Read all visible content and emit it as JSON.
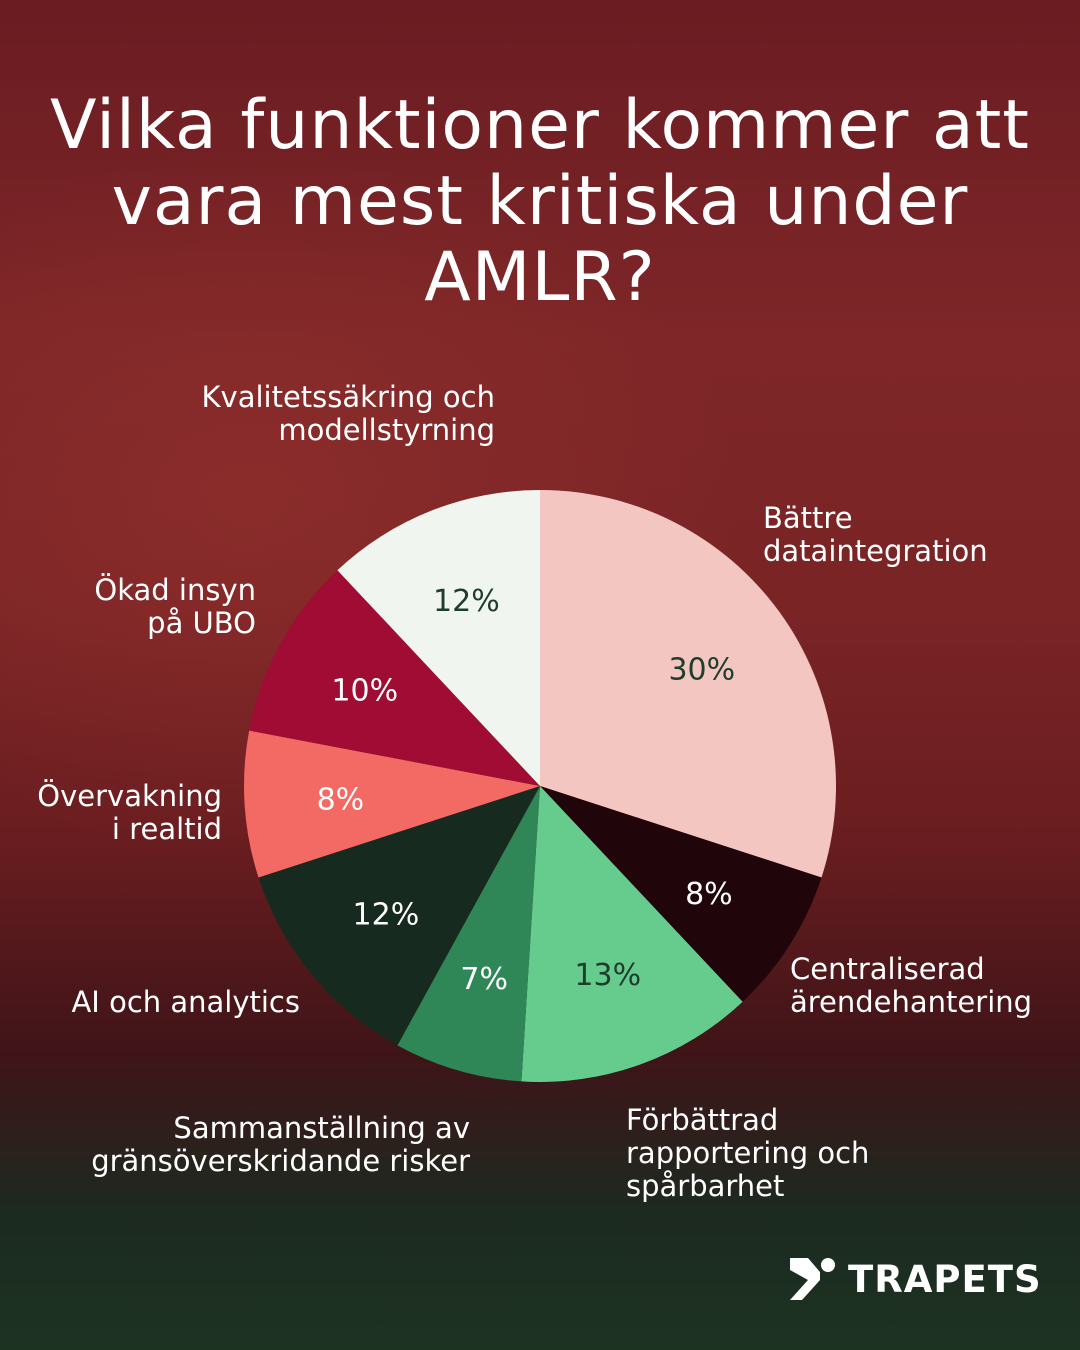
{
  "title": "Vilka funktioner kommer att vara mest kritiska under AMLR?",
  "chart_data": {
    "type": "pie",
    "title": "Vilka funktioner kommer att vara mest kritiska under AMLR?",
    "start": "top",
    "direction": "clockwise",
    "categories": [
      "Bättre dataintegration",
      "Centraliserad ärendehantering",
      "Förbättrad rapportering och spårbarhet",
      "Sammanställning av gränsöverskridande risker",
      "AI och analytics",
      "Övervakning i realtid",
      "Ökad insyn på UBO",
      "Kvalitetssäkring och modellstyrning"
    ],
    "values": [
      30,
      8,
      13,
      7,
      12,
      8,
      10,
      12
    ],
    "data_labels": [
      "30%",
      "8%",
      "13%",
      "7%",
      "12%",
      "8%",
      "10%",
      "12%"
    ],
    "colors": [
      "#f4c6c1",
      "#20050a",
      "#66cc8e",
      "#2f8757",
      "#172a20",
      "#f26a63",
      "#a00c33",
      "#f1f5f0"
    ],
    "label_colors": [
      "#1e3d2c",
      "#ffffff",
      "#1e3d2c",
      "#ffffff",
      "#ffffff",
      "#ffffff",
      "#ffffff",
      "#1e3d2c"
    ]
  },
  "labels": {
    "l0a": "Bättre",
    "l0b": "dataintegration",
    "l1a": "Centraliserad",
    "l1b": "ärendehantering",
    "l2a": "Förbättrad",
    "l2b": "rapportering och",
    "l2c": "spårbarhet",
    "l3a": "Sammanställning av",
    "l3b": "gränsöverskridande risker",
    "l4a": "AI och analytics",
    "l5a": "Övervakning",
    "l5b": "i realtid",
    "l6a": "Ökad insyn",
    "l6b": "på UBO",
    "l7a": "Kvalitetssäkring och",
    "l7b": "modellstyrning"
  },
  "logo": {
    "text": "TRAPETS"
  }
}
